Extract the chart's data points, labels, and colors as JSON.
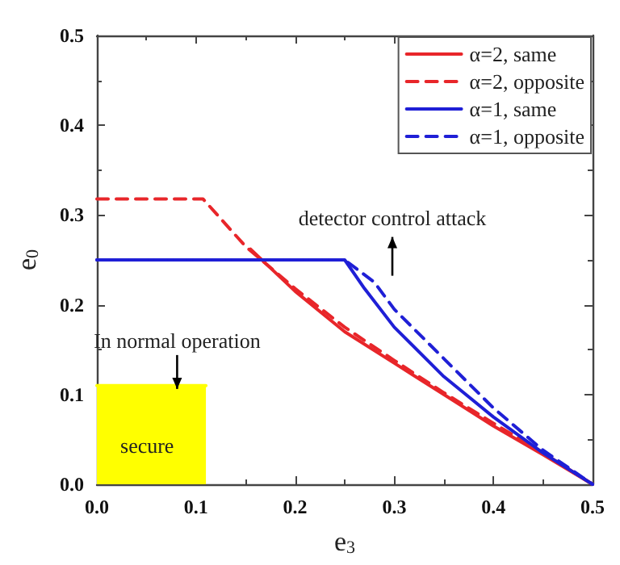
{
  "chart_data": {
    "type": "line",
    "xlabel": "e$_{3}$",
    "ylabel": "e$_{0}$",
    "xlim": [
      0,
      0.5
    ],
    "ylim": [
      0,
      0.5
    ],
    "xticks": [
      {
        "value": 0,
        "label": "0.0"
      },
      0.1,
      0.2,
      0.3,
      0.4,
      0.5
    ],
    "yticks": [
      {
        "value": 0,
        "label": "0.0"
      },
      0.1,
      0.2,
      0.3,
      0.4,
      0.5
    ],
    "grid": false,
    "legend": "top right",
    "marker": "none",
    "series": [
      {
        "name": "α=2, same",
        "color": "#e8262a",
        "line_style": "solid",
        "x": [
          0.155,
          0.2,
          0.25,
          0.3,
          0.35,
          0.4,
          0.45,
          0.5
        ],
        "values": [
          0.262,
          0.215,
          0.17,
          0.135,
          0.1,
          0.065,
          0.033,
          0
        ]
      },
      {
        "name": "α=2, opposite",
        "color": "#e8262a",
        "line_style": "dashed",
        "x": [
          0,
          0.107,
          0.15,
          0.2,
          0.25,
          0.3,
          0.35,
          0.4,
          0.45,
          0.5
        ],
        "values": [
          0.318,
          0.318,
          0.265,
          0.218,
          0.175,
          0.138,
          0.102,
          0.068,
          0.035,
          0
        ]
      },
      {
        "name": "α=1, same",
        "color": "#1f1fd6",
        "line_style": "solid",
        "x": [
          0,
          0.25,
          0.27,
          0.3,
          0.35,
          0.4,
          0.45,
          0.5
        ],
        "values": [
          0.25,
          0.25,
          0.218,
          0.175,
          0.12,
          0.075,
          0.035,
          0
        ]
      },
      {
        "name": "α=1, opposite",
        "color": "#1f1fd6",
        "line_style": "dashed",
        "x": [
          0,
          0.25,
          0.28,
          0.3,
          0.35,
          0.4,
          0.45,
          0.5
        ],
        "values": [
          0.25,
          0.25,
          0.225,
          0.195,
          0.14,
          0.085,
          0.038,
          0
        ]
      },
      {
        "type": "area",
        "color": "#ffff00",
        "x": [
          0,
          0.11
        ],
        "values": [
          0.11,
          0.11
        ]
      }
    ],
    "annotations": [
      "secure",
      "In normal operation",
      "detector control attack"
    ]
  }
}
